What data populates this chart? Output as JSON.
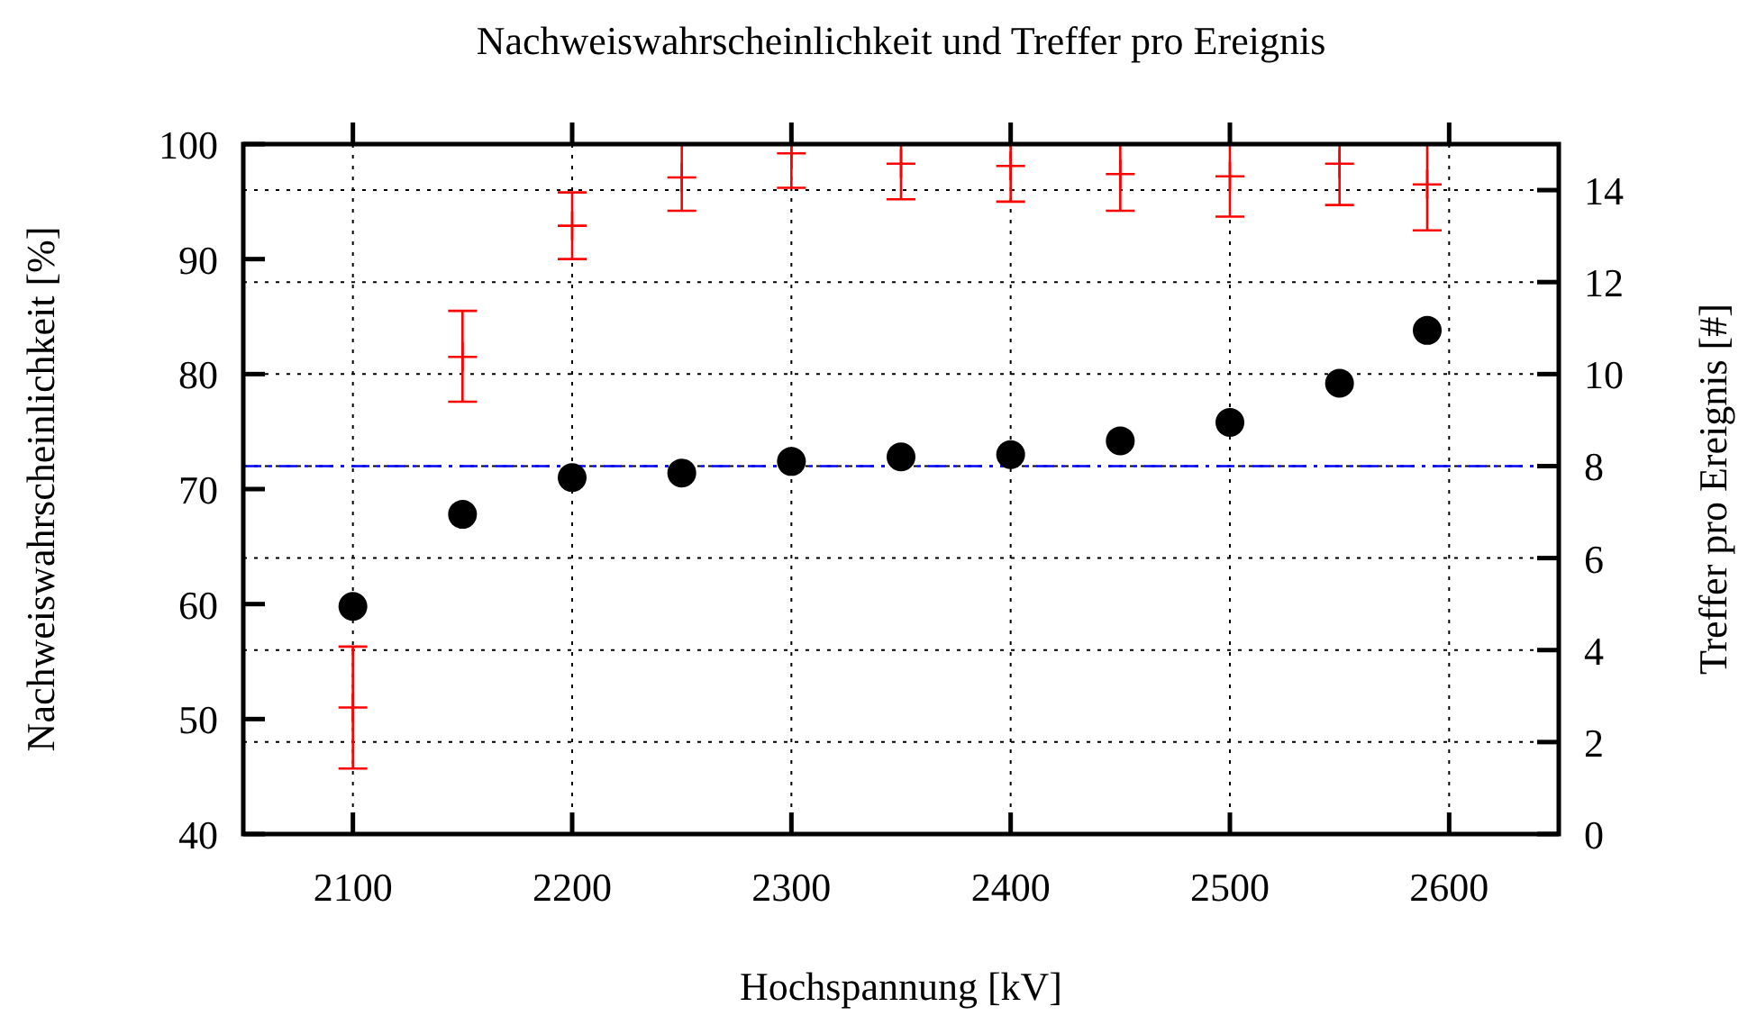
{
  "chart_data": {
    "type": "scatter",
    "title": "Nachweiswahrscheinlichkeit und Treffer pro Ereignis",
    "xlabel": "Hochspannung [kV]",
    "ylabel": "Nachweiswahrscheinlichkeit [%]",
    "y2label": "Treffer pro Ereignis [#]",
    "xlim": [
      2050,
      2650
    ],
    "xticks": [
      2100,
      2200,
      2300,
      2400,
      2500,
      2600
    ],
    "ylim": [
      40,
      100
    ],
    "yticks": [
      40,
      50,
      60,
      70,
      80,
      90,
      100
    ],
    "y2lim": [
      0,
      15
    ],
    "y2ticks": [
      0,
      2,
      4,
      6,
      8,
      10,
      12,
      14
    ],
    "grid": true,
    "series": [
      {
        "color": "#ff0000",
        "marker": "cross",
        "x": [
          2100,
          2150,
          2200,
          2250,
          2300,
          2350,
          2400,
          2450,
          2500,
          2550,
          2590
        ],
        "values": [
          51.0,
          81.5,
          92.9,
          97.1,
          99.2,
          98.3,
          98.1,
          97.4,
          97.2,
          98.3,
          96.5
        ],
        "errors": [
          [
            45.7,
            56.3
          ],
          [
            77.6,
            85.5
          ],
          [
            90.0,
            95.8
          ],
          [
            94.2,
            100
          ],
          [
            96.2,
            100
          ],
          [
            95.2,
            100
          ],
          [
            95.0,
            100
          ],
          [
            94.2,
            100
          ],
          [
            93.7,
            100
          ],
          [
            94.7,
            100
          ],
          [
            92.5,
            100
          ]
        ]
      },
      {
        "color": "#000000",
        "marker": "circle",
        "axis": "y2",
        "x": [
          2100,
          2150,
          2200,
          2250,
          2300,
          2350,
          2400,
          2450,
          2500,
          2550,
          2590
        ],
        "values": [
          4.95,
          6.95,
          7.75,
          7.85,
          8.1,
          8.2,
          8.25,
          8.55,
          8.95,
          9.8,
          10.95
        ]
      }
    ],
    "ref_lines": [
      {
        "axis": "y2",
        "value": 8,
        "color": "#0000ff",
        "line_style": "dashed"
      }
    ]
  }
}
